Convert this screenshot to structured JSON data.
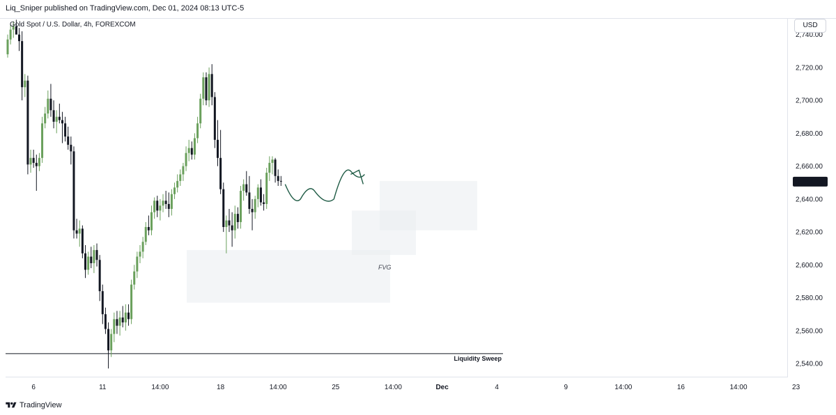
{
  "header": {
    "publisher_line": "Liq_Sniper published on TradingView.com, Dec 01, 2024 08:13 UTC-5",
    "symbol_line": "Gold Spot / U.S. Dollar, 4h, FOREXCOM",
    "currency_label": "USD"
  },
  "footer": {
    "brand": "TradingView"
  },
  "chart_data": {
    "type": "candlestick",
    "price_ticks": [
      "2,740.00",
      "2,720.00",
      "2,700.00",
      "2,680.00",
      "2,660.00",
      "2,640.00",
      "2,620.00",
      "2,600.00",
      "2,580.00",
      "2,560.00",
      "2,540.00"
    ],
    "price_tick_values": [
      2740,
      2720,
      2700,
      2680,
      2660,
      2640,
      2620,
      2600,
      2580,
      2560,
      2540
    ],
    "time_ticks": [
      "6",
      "11",
      "14:00",
      "18",
      "14:00",
      "25",
      "14:00",
      "Dec",
      "4",
      "9",
      "14:00",
      "16",
      "14:00",
      "23"
    ],
    "time_tick_bars": [
      9,
      33,
      53,
      74,
      94,
      114,
      134,
      151,
      170,
      194,
      214,
      234,
      254,
      274
    ],
    "last_price": "2,650.59",
    "last_price_value": 2650.59,
    "ylim": [
      2532,
      2750
    ],
    "colors": {
      "up": "#6aa05c",
      "down": "#131722",
      "label_bg": "#131722",
      "zone": "#e9ecf1",
      "projection": "#1f5b45"
    },
    "candles": [
      [
        2728,
        2740,
        2726,
        2737
      ],
      [
        2737,
        2746,
        2734,
        2743
      ],
      [
        2743,
        2748,
        2738,
        2745
      ],
      [
        2745,
        2749,
        2741,
        2740
      ],
      [
        2740,
        2744,
        2730,
        2736
      ],
      [
        2736,
        2742,
        2700,
        2708
      ],
      [
        2708,
        2716,
        2702,
        2712
      ],
      [
        2712,
        2715,
        2655,
        2661
      ],
      [
        2661,
        2670,
        2656,
        2665
      ],
      [
        2665,
        2670,
        2659,
        2662
      ],
      [
        2662,
        2667,
        2645,
        2660
      ],
      [
        2660,
        2668,
        2657,
        2665
      ],
      [
        2665,
        2690,
        2662,
        2686
      ],
      [
        2686,
        2696,
        2683,
        2692
      ],
      [
        2692,
        2706,
        2689,
        2701
      ],
      [
        2701,
        2710,
        2690,
        2694
      ],
      [
        2694,
        2700,
        2683,
        2687
      ],
      [
        2687,
        2694,
        2680,
        2690
      ],
      [
        2690,
        2698,
        2686,
        2688
      ],
      [
        2688,
        2693,
        2674,
        2686
      ],
      [
        2686,
        2690,
        2675,
        2678
      ],
      [
        2678,
        2684,
        2670,
        2673
      ],
      [
        2673,
        2678,
        2661,
        2669
      ],
      [
        2669,
        2672,
        2616,
        2621
      ],
      [
        2621,
        2628,
        2616,
        2619
      ],
      [
        2619,
        2627,
        2611,
        2622
      ],
      [
        2622,
        2624,
        2604,
        2607
      ],
      [
        2607,
        2612,
        2592,
        2597
      ],
      [
        2597,
        2608,
        2594,
        2605
      ],
      [
        2605,
        2611,
        2598,
        2601
      ],
      [
        2601,
        2612,
        2595,
        2609
      ],
      [
        2609,
        2613,
        2599,
        2603
      ],
      [
        2603,
        2606,
        2578,
        2584
      ],
      [
        2584,
        2588,
        2564,
        2570
      ],
      [
        2570,
        2574,
        2558,
        2561
      ],
      [
        2561,
        2565,
        2537,
        2548
      ],
      [
        2548,
        2561,
        2544,
        2558
      ],
      [
        2558,
        2571,
        2553,
        2567
      ],
      [
        2567,
        2572,
        2558,
        2563
      ],
      [
        2563,
        2572,
        2557,
        2568
      ],
      [
        2568,
        2575,
        2562,
        2565
      ],
      [
        2565,
        2576,
        2560,
        2571
      ],
      [
        2571,
        2576,
        2563,
        2567
      ],
      [
        2567,
        2591,
        2564,
        2588
      ],
      [
        2588,
        2600,
        2585,
        2596
      ],
      [
        2596,
        2608,
        2592,
        2605
      ],
      [
        2605,
        2612,
        2601,
        2608
      ],
      [
        2608,
        2617,
        2604,
        2614
      ],
      [
        2614,
        2626,
        2612,
        2623
      ],
      [
        2623,
        2630,
        2618,
        2621
      ],
      [
        2621,
        2636,
        2618,
        2632
      ],
      [
        2632,
        2641,
        2628,
        2639
      ],
      [
        2639,
        2642,
        2629,
        2633
      ],
      [
        2633,
        2640,
        2627,
        2636
      ],
      [
        2636,
        2643,
        2632,
        2639
      ],
      [
        2639,
        2645,
        2634,
        2637
      ],
      [
        2637,
        2644,
        2629,
        2634
      ],
      [
        2634,
        2646,
        2630,
        2643
      ],
      [
        2643,
        2650,
        2640,
        2647
      ],
      [
        2647,
        2655,
        2644,
        2651
      ],
      [
        2651,
        2658,
        2648,
        2655
      ],
      [
        2655,
        2662,
        2651,
        2660
      ],
      [
        2660,
        2672,
        2657,
        2668
      ],
      [
        2668,
        2676,
        2663,
        2671
      ],
      [
        2671,
        2675,
        2664,
        2667
      ],
      [
        2667,
        2680,
        2664,
        2677
      ],
      [
        2677,
        2690,
        2674,
        2686
      ],
      [
        2686,
        2704,
        2683,
        2701
      ],
      [
        2701,
        2717,
        2697,
        2714
      ],
      [
        2714,
        2717,
        2697,
        2700
      ],
      [
        2700,
        2720,
        2696,
        2716
      ],
      [
        2716,
        2722,
        2697,
        2702
      ],
      [
        2702,
        2705,
        2671,
        2676
      ],
      [
        2676,
        2688,
        2660,
        2665
      ],
      [
        2665,
        2682,
        2643,
        2646
      ],
      [
        2646,
        2650,
        2620,
        2623
      ],
      [
        2623,
        2630,
        2607,
        2627
      ],
      [
        2627,
        2634,
        2620,
        2624
      ],
      [
        2624,
        2632,
        2611,
        2621
      ],
      [
        2621,
        2636,
        2616,
        2631
      ],
      [
        2631,
        2635,
        2622,
        2626
      ],
      [
        2626,
        2648,
        2622,
        2645
      ],
      [
        2645,
        2652,
        2639,
        2649
      ],
      [
        2649,
        2657,
        2642,
        2644
      ],
      [
        2644,
        2654,
        2631,
        2634
      ],
      [
        2634,
        2640,
        2621,
        2632
      ],
      [
        2632,
        2642,
        2628,
        2640
      ],
      [
        2640,
        2649,
        2635,
        2647
      ],
      [
        2647,
        2652,
        2636,
        2638
      ],
      [
        2638,
        2643,
        2633,
        2637
      ],
      [
        2637,
        2659,
        2634,
        2656
      ],
      [
        2656,
        2666,
        2651,
        2662
      ],
      [
        2662,
        2666,
        2655,
        2664
      ],
      [
        2664,
        2665,
        2650,
        2654
      ],
      [
        2654,
        2658,
        2648,
        2651
      ],
      [
        2651,
        2654,
        2648,
        2650.59
      ]
    ],
    "zones": [
      {
        "y_top": 2609,
        "y_bottom": 2577
      },
      {
        "y_top": 2633,
        "y_bottom": 2606
      },
      {
        "y_top": 2651,
        "y_bottom": 2621
      }
    ],
    "zone_label": "FVG",
    "sweep_level": 2546,
    "sweep_label": "Liquidity Sweep",
    "projection_path": [
      [
        2649,
        2640
      ],
      [
        2638,
        2645
      ],
      [
        2648,
        2640
      ],
      [
        2652,
        2657
      ],
      [
        2661,
        2655
      ]
    ]
  }
}
